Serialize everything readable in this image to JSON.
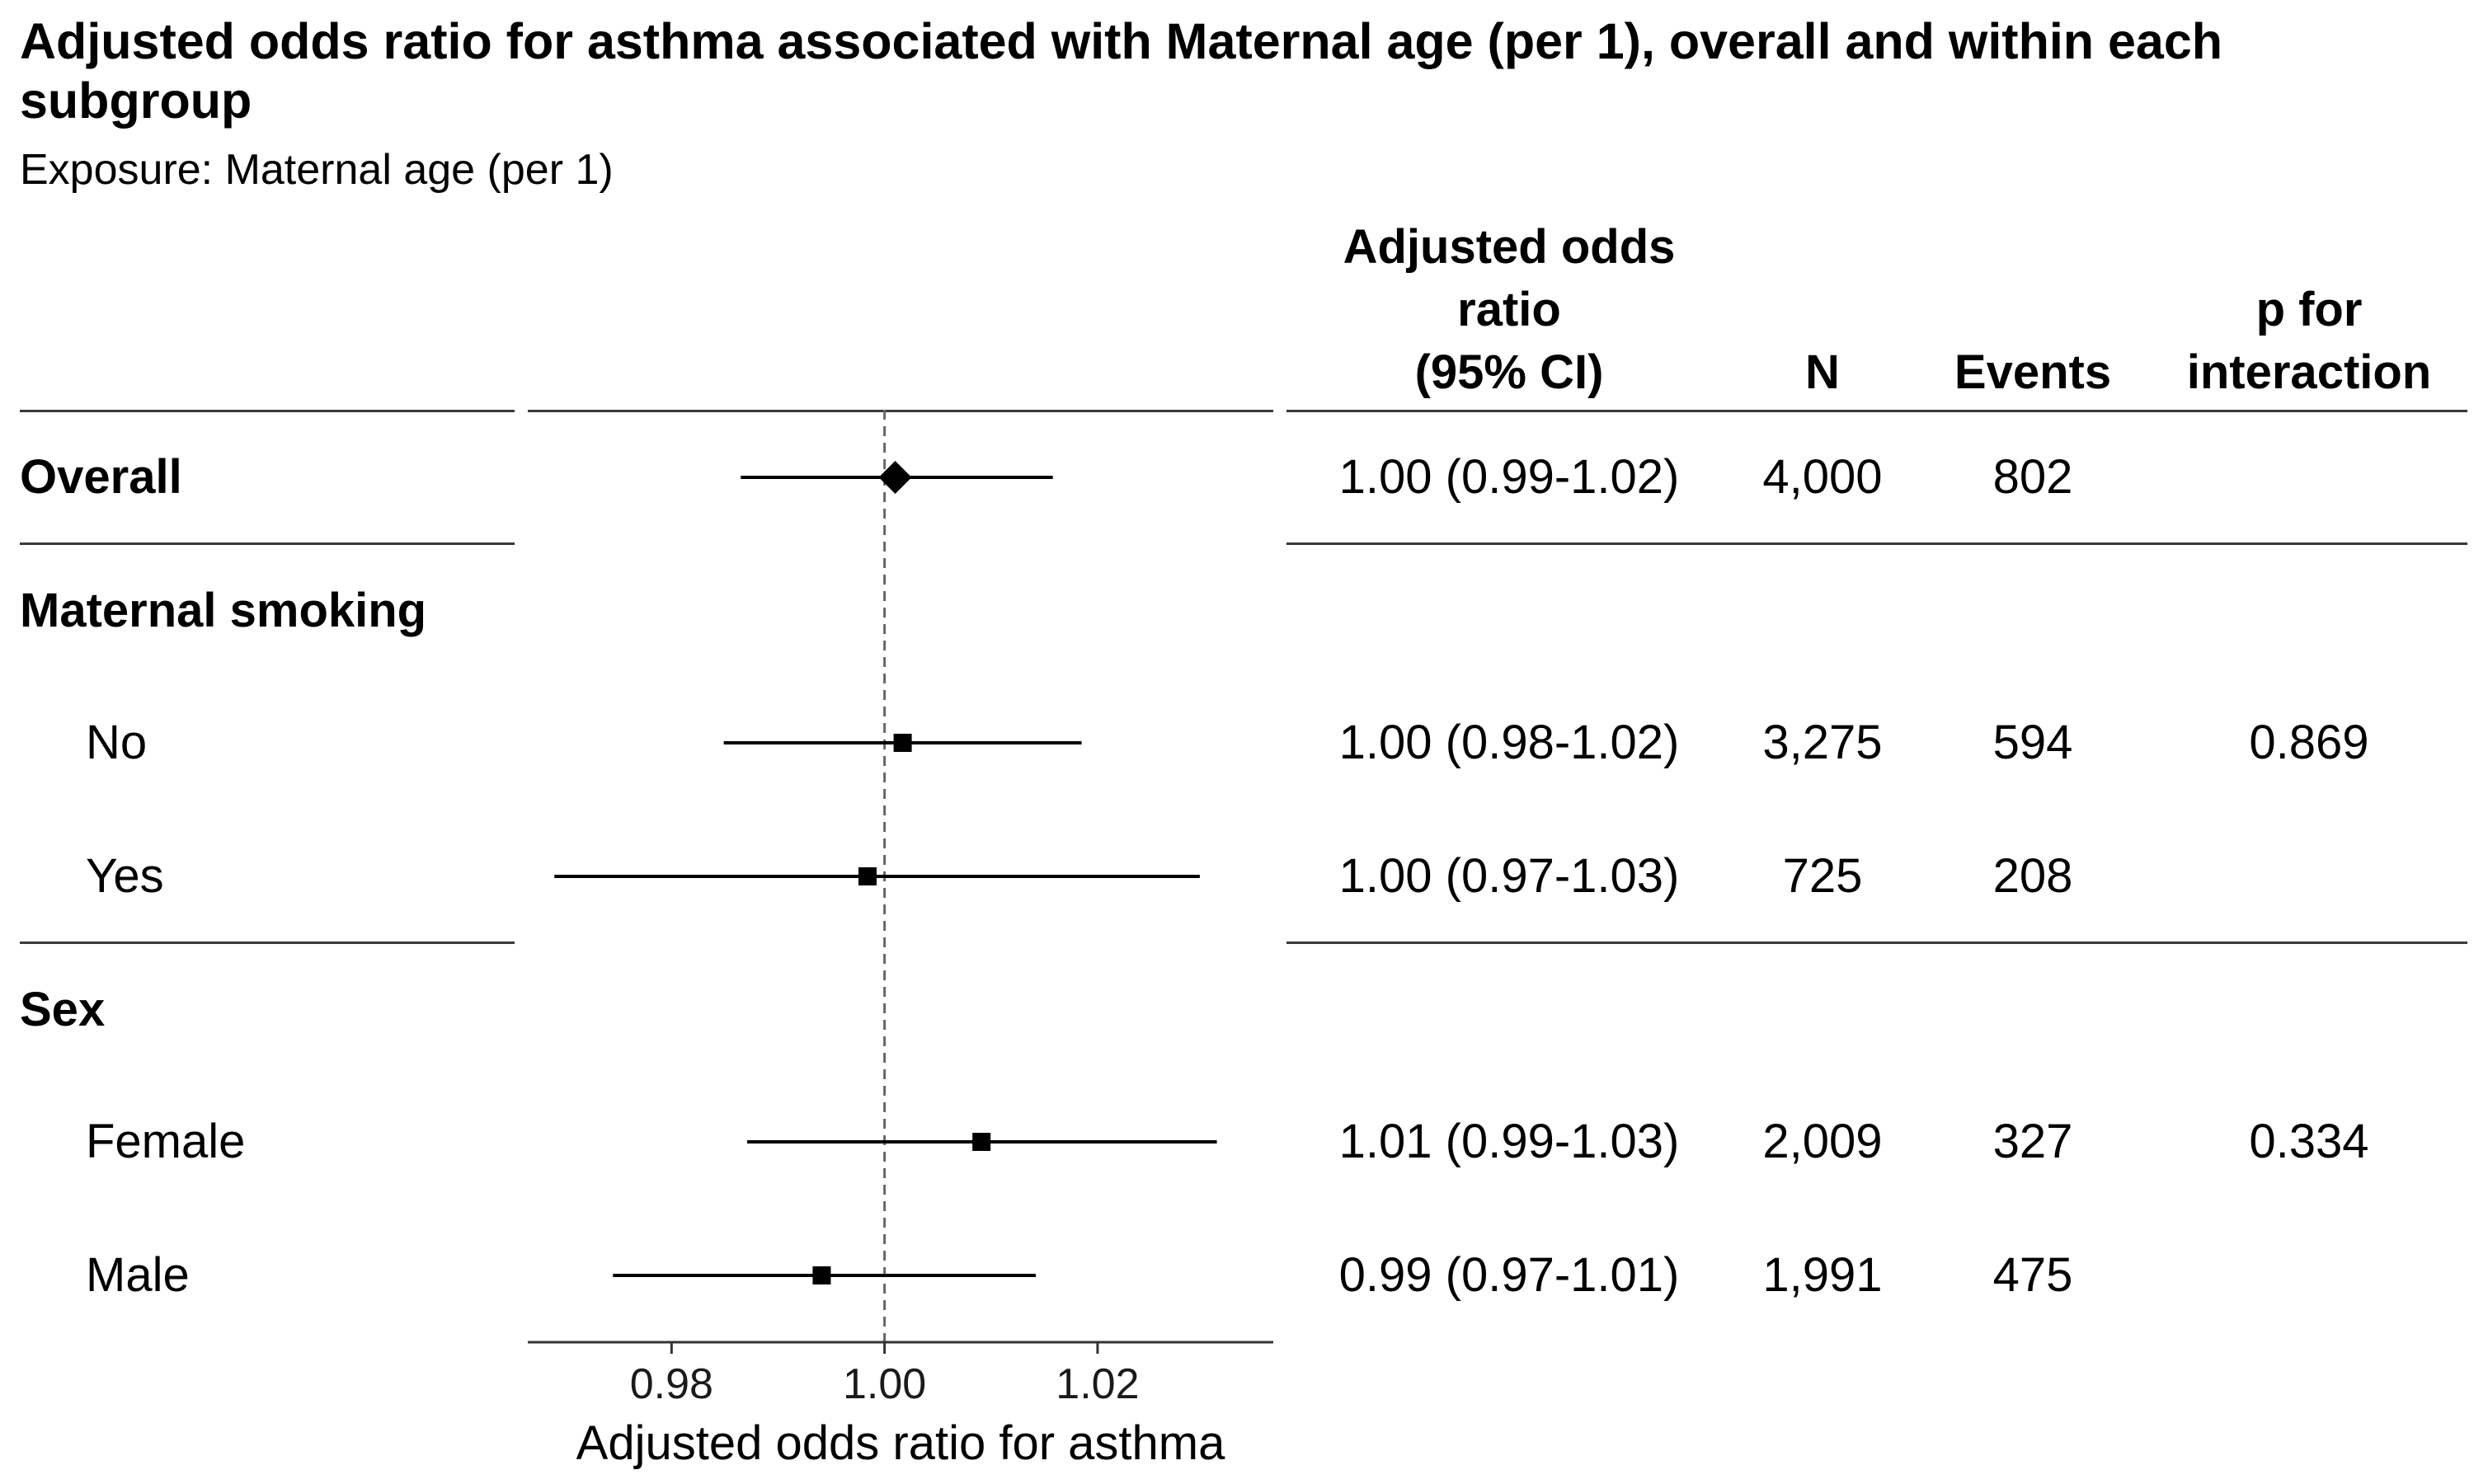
{
  "title": "Adjusted odds ratio for asthma associated with Maternal age (per 1), overall and within each subgroup",
  "subtitle": "Exposure: Maternal age (per 1)",
  "columns": {
    "or_line1": "Adjusted odds",
    "or_line2": "ratio",
    "or_line3": "(95% CI)",
    "n": "N",
    "events": "Events",
    "p_line1": "p for",
    "p_line2": "interaction"
  },
  "rows": [
    {
      "label": "Overall",
      "header": true,
      "or_text": "1.00 (0.99-1.02)",
      "n": "4,000",
      "events": "802",
      "p": ""
    },
    {
      "label": "Maternal smoking",
      "header": true,
      "or_text": "",
      "n": "",
      "events": "",
      "p": ""
    },
    {
      "label": "No",
      "header": false,
      "or_text": "1.00 (0.98-1.02)",
      "n": "3,275",
      "events": "594",
      "p": "0.869"
    },
    {
      "label": "Yes",
      "header": false,
      "or_text": "1.00 (0.97-1.03)",
      "n": "725",
      "events": "208",
      "p": ""
    },
    {
      "label": "Sex",
      "header": true,
      "or_text": "",
      "n": "",
      "events": "",
      "p": ""
    },
    {
      "label": "Female",
      "header": false,
      "or_text": "1.01 (0.99-1.03)",
      "n": "2,009",
      "events": "327",
      "p": "0.334"
    },
    {
      "label": "Male",
      "header": false,
      "or_text": "0.99 (0.97-1.01)",
      "n": "1,991",
      "events": "475",
      "p": ""
    }
  ],
  "chart_data": {
    "type": "scatter",
    "subtype": "forest-plot",
    "xlabel": "Adjusted odds ratio for asthma",
    "xlim": [
      0.9665,
      1.0365
    ],
    "xticks": [
      0.98,
      1.0,
      1.02
    ],
    "xtick_labels": [
      "0.98",
      "1.00",
      "1.02"
    ],
    "reference_line": 1.0,
    "points": [
      {
        "row": "Overall",
        "estimate": 1.001,
        "lower": 0.9865,
        "upper": 1.0158,
        "marker": "diamond"
      },
      {
        "row": "No",
        "estimate": 1.0017,
        "lower": 0.9849,
        "upper": 1.0185,
        "marker": "square"
      },
      {
        "row": "Yes",
        "estimate": 0.9984,
        "lower": 0.969,
        "upper": 1.0296,
        "marker": "square"
      },
      {
        "row": "Female",
        "estimate": 1.0091,
        "lower": 0.9871,
        "upper": 1.0312,
        "marker": "square"
      },
      {
        "row": "Male",
        "estimate": 0.9941,
        "lower": 0.9745,
        "upper": 1.0142,
        "marker": "square"
      }
    ]
  }
}
